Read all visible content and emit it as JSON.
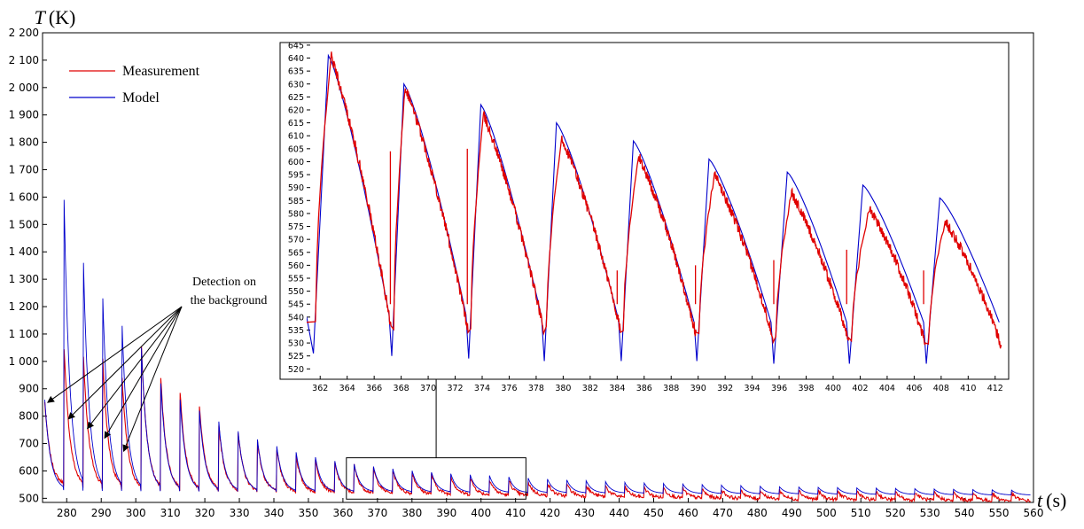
{
  "chart_data": [
    {
      "type": "line",
      "ylabel_symbol": "T",
      "ylabel_unit": "(K)",
      "xlabel_symbol": "t",
      "xlabel_unit": "(s)",
      "xlim": [
        273,
        560
      ],
      "ylim": [
        485,
        2200
      ],
      "xticks": [
        280,
        290,
        300,
        310,
        320,
        330,
        340,
        350,
        360,
        370,
        380,
        390,
        400,
        410,
        420,
        430,
        440,
        450,
        460,
        470,
        480,
        490,
        500,
        510,
        520,
        530,
        540,
        550,
        560
      ],
      "yticks": [
        {
          "value": 500,
          "label": "500"
        },
        {
          "value": 600,
          "label": "600"
        },
        {
          "value": 700,
          "label": "700"
        },
        {
          "value": 800,
          "label": "800"
        },
        {
          "value": 900,
          "label": "900"
        },
        {
          "value": 1000,
          "label": "1 000"
        },
        {
          "value": 1100,
          "label": "1 100"
        },
        {
          "value": 1200,
          "label": "1 200"
        },
        {
          "value": 1300,
          "label": "1 300"
        },
        {
          "value": 1400,
          "label": "1 400"
        },
        {
          "value": 1500,
          "label": "1 500"
        },
        {
          "value": 1600,
          "label": "1 600"
        },
        {
          "value": 1700,
          "label": "1 700"
        },
        {
          "value": 1800,
          "label": "1 800"
        },
        {
          "value": 1900,
          "label": "1 900"
        },
        {
          "value": 2000,
          "label": "2 000"
        },
        {
          "value": 2100,
          "label": "2 100"
        },
        {
          "value": 2200,
          "label": "2 200"
        }
      ],
      "period": 5.6,
      "first_cycle_start": 273.5,
      "series": [
        {
          "name": "Measurement",
          "color": "#e00000",
          "cycle_peaks": [
            850,
            1050,
            1020,
            1010,
            940,
            1050,
            940,
            890,
            840,
            770,
            740,
            710,
            680,
            655,
            640,
            630,
            620,
            610,
            603,
            595,
            588,
            582,
            576,
            570,
            565,
            560,
            556,
            552,
            548,
            545,
            542,
            540,
            538,
            536,
            534,
            533,
            532,
            531,
            530,
            529,
            528,
            527,
            526,
            525,
            524,
            523,
            522,
            521,
            520,
            519,
            518
          ],
          "cycle_minima": [
            545,
            538,
            535,
            532,
            530,
            528,
            527,
            526,
            525,
            524,
            523,
            522,
            521,
            520,
            519,
            518,
            517,
            516,
            515,
            514,
            513,
            512,
            511,
            510,
            509,
            508,
            507,
            506,
            505,
            504,
            503,
            502,
            501,
            500,
            499,
            498,
            497,
            496,
            495,
            495,
            494,
            494,
            493,
            493,
            492,
            492,
            491,
            491,
            490,
            490,
            490
          ]
        },
        {
          "name": "Model",
          "color": "#0000cc",
          "cycle_peaks": [
            860,
            1590,
            1360,
            1230,
            1130,
            1050,
            920,
            860,
            820,
            780,
            745,
            715,
            690,
            668,
            650,
            636,
            625,
            616,
            608,
            601,
            595,
            590,
            586,
            583,
            578,
            574,
            570,
            567,
            564,
            561,
            558,
            556,
            554,
            552,
            550,
            548,
            546,
            544,
            542,
            541,
            540,
            539,
            538,
            537,
            536,
            535,
            534,
            533,
            532,
            531,
            530
          ],
          "cycle_minima": [
            530,
            528,
            527,
            527,
            526,
            526,
            526,
            525,
            525,
            525,
            525,
            524,
            524,
            524,
            523,
            523,
            523,
            523,
            522,
            522,
            522,
            521,
            521,
            521,
            520,
            520,
            520,
            519,
            519,
            519,
            518,
            518,
            518,
            517,
            517,
            517,
            516,
            516,
            516,
            515,
            515,
            515,
            514,
            514,
            514,
            513,
            513,
            513,
            512,
            512,
            512
          ]
        }
      ],
      "annotation": {
        "line1": "Detection on",
        "line2": "the background",
        "targets": [
          [
            274.5,
            850
          ],
          [
            280.5,
            790
          ],
          [
            286,
            755
          ],
          [
            291,
            720
          ],
          [
            296.5,
            672
          ]
        ]
      },
      "zoom_box": {
        "x": [
          361,
          413
        ],
        "y": [
          497,
          648
        ]
      }
    },
    {
      "type": "line",
      "inset": true,
      "xlim": [
        361,
        413
      ],
      "ylim": [
        516,
        646
      ],
      "xticks": [
        362,
        364,
        366,
        368,
        370,
        372,
        374,
        376,
        378,
        380,
        382,
        384,
        386,
        388,
        390,
        392,
        394,
        396,
        398,
        400,
        402,
        404,
        406,
        408,
        410,
        412
      ],
      "yticks": [
        520,
        525,
        530,
        535,
        540,
        545,
        550,
        555,
        560,
        565,
        570,
        575,
        580,
        585,
        590,
        595,
        600,
        605,
        610,
        615,
        620,
        625,
        630,
        635,
        640,
        645
      ],
      "cycle_starts": [
        361.5,
        367.3,
        373.0,
        378.6,
        384.3,
        389.9,
        395.6,
        401.2,
        406.9,
        412.5
      ],
      "series": [
        {
          "name": "Measurement",
          "color": "#e00000",
          "peaks": [
            641,
            629,
            618,
            609,
            602,
            595,
            588,
            582,
            577
          ],
          "peak_times": [
            362.8,
            368.3,
            374.1,
            379.9,
            385.6,
            391.2,
            396.9,
            402.7,
            408.3
          ],
          "minima": [
            536,
            535,
            535,
            535,
            533,
            532,
            531,
            530,
            529
          ],
          "spikes": [
            [
              367.2,
              604
            ],
            [
              372.9,
              605
            ],
            [
              384.0,
              558
            ],
            [
              389.8,
              560
            ],
            [
              395.6,
              562
            ],
            [
              401.0,
              566
            ],
            [
              406.7,
              558
            ]
          ]
        },
        {
          "name": "Model",
          "color": "#0000cc",
          "peaks": [
            641,
            630,
            622,
            615,
            608,
            601,
            596,
            591,
            586
          ],
          "peak_times": [
            362.6,
            368.2,
            373.9,
            379.5,
            385.2,
            390.8,
            396.6,
            402.2,
            407.9
          ],
          "minima": [
            526,
            525,
            524,
            523,
            523,
            523,
            522,
            522,
            522
          ],
          "pre_min": [
            541,
            541,
            540,
            539,
            538,
            538,
            538,
            538,
            538
          ]
        }
      ]
    }
  ]
}
